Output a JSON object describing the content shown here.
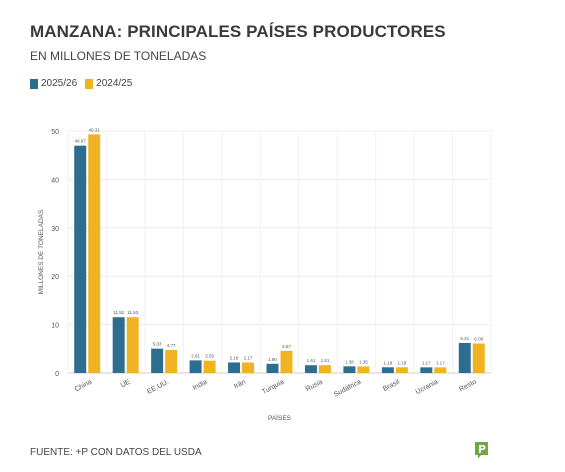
{
  "header": {
    "title": "MANZANA: PRINCIPALES PAÍSES PRODUCTORES",
    "subtitle": "EN MILLONES DE TONELADAS"
  },
  "footer": {
    "source": "FUENTE: +P CON DATOS DEL USDA"
  },
  "logo": {
    "icon": "plus-p-logo-icon",
    "color": "#6aab3c"
  },
  "chart_data": {
    "type": "bar",
    "categories": [
      "China",
      "UE",
      "EE.UU.",
      "India",
      "Irán",
      "Turquía",
      "Rusia",
      "Sudáfrica",
      "Brasil",
      "Ucrania",
      "Resto"
    ],
    "series": [
      {
        "name": "2025/26",
        "color": "#2d6e8e",
        "values": [
          46.97,
          11.52,
          5.03,
          2.61,
          2.18,
          1.9,
          1.61,
          1.38,
          1.18,
          1.17,
          6.21
        ]
      },
      {
        "name": "2024/25",
        "color": "#f0b323",
        "values": [
          49.31,
          11.53,
          4.77,
          2.55,
          2.17,
          4.57,
          1.61,
          1.35,
          1.18,
          1.17,
          6.08
        ]
      }
    ],
    "value_labels": [
      [
        "46.97",
        "11.52",
        "5.03",
        "2.61",
        "2.18",
        "1.90",
        "1.61",
        "1.38",
        "1.18",
        "1.17",
        "6.21"
      ],
      [
        "49.31",
        "11.53",
        "4.77",
        "2.55",
        "2.17",
        "4.57",
        "1.61",
        "1.35",
        "1.18",
        "1.17",
        "6.08"
      ]
    ],
    "xlabel": "PAÍSES",
    "ylabel": "MILLONES DE TONELADAS",
    "ylim": [
      0,
      50
    ],
    "yticks": [
      0,
      10,
      20,
      30,
      40,
      50
    ],
    "grid": true,
    "legend": "top-left"
  }
}
